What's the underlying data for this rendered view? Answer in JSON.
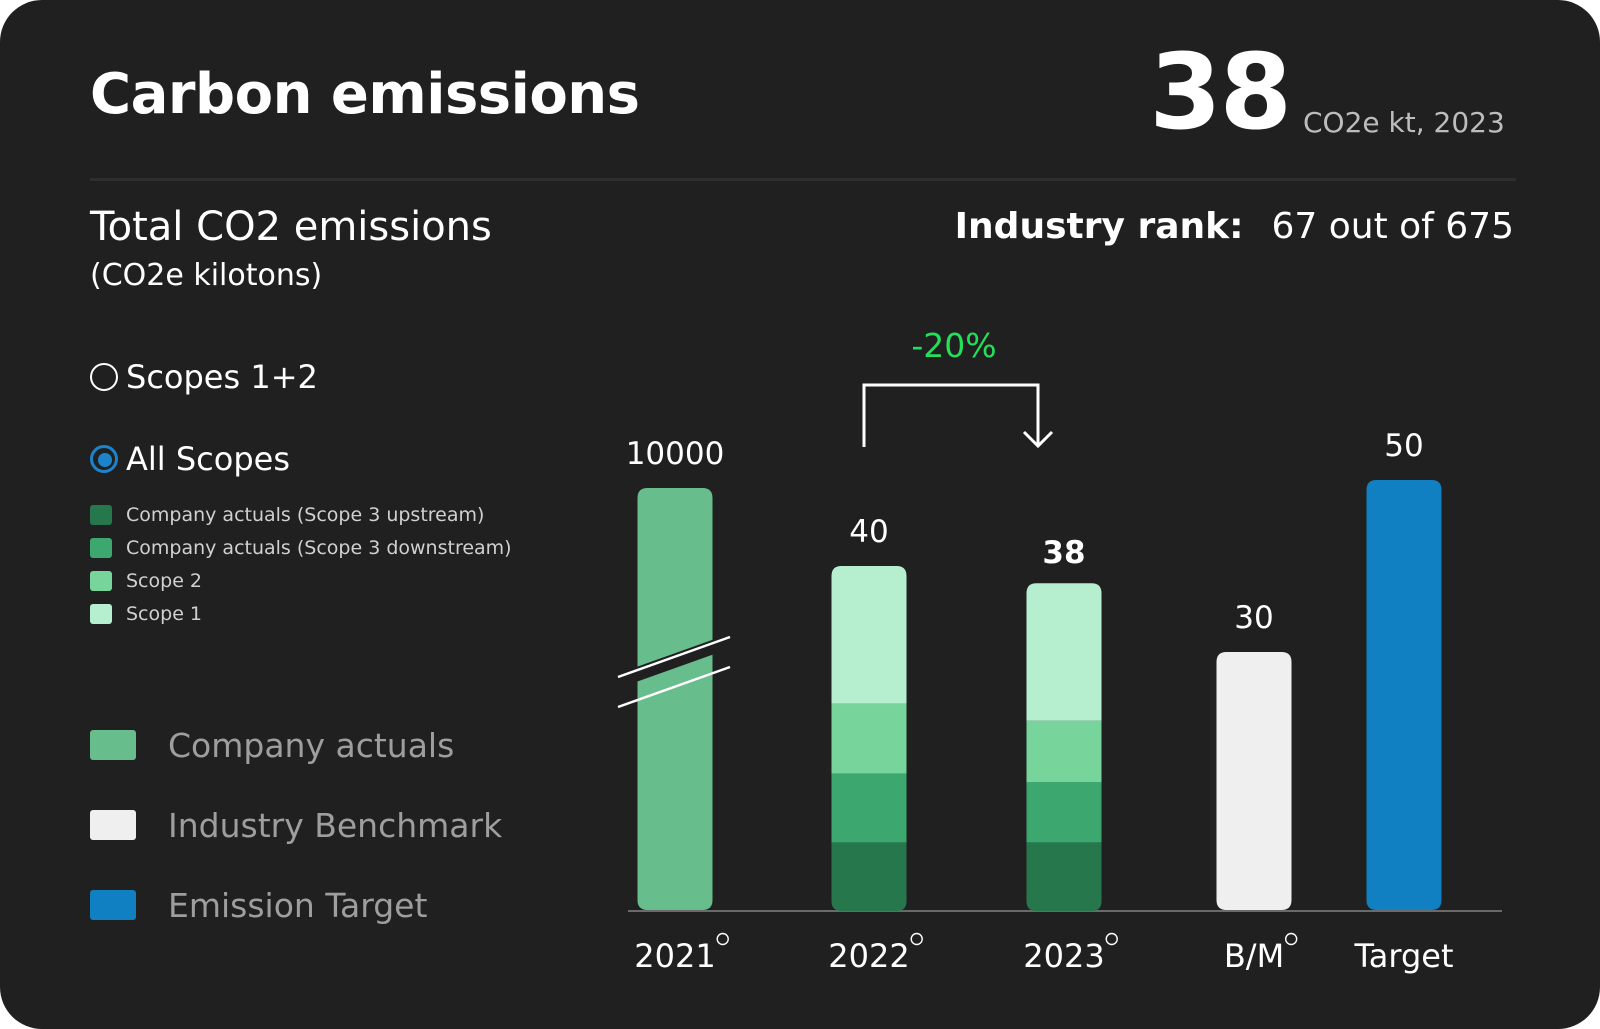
{
  "header": {
    "title": "Carbon emissions",
    "headline_value": "38",
    "headline_unit": "CO2e kt, 2023"
  },
  "section": {
    "title": "Total CO2 emissions",
    "unit": "(CO2e kilotons)",
    "rank_label": "Industry rank:",
    "rank_value": "67 out of 675"
  },
  "scope_selector": {
    "options": [
      {
        "label": "Scopes 1+2",
        "selected": false
      },
      {
        "label": "All Scopes",
        "selected": true
      }
    ]
  },
  "colors": {
    "scope3_upstream": "#27774d",
    "scope3_downstream": "#3ca86f",
    "scope2": "#77d49a",
    "scope1": "#b6efd0",
    "company_actuals": "#67bd8b",
    "benchmark": "#efefef",
    "target": "#1080c2",
    "change": "#22e05a",
    "accent": "#1c84cc"
  },
  "scope_legend": [
    {
      "label": "Company actuals (Scope 3 upstream)",
      "color": "#27774d"
    },
    {
      "label": "Company actuals (Scope 3 downstream)",
      "color": "#3ca86f"
    },
    {
      "label": "Scope 2",
      "color": "#77d49a"
    },
    {
      "label": "Scope 1",
      "color": "#b6efd0"
    }
  ],
  "main_legend": [
    {
      "label": "Company actuals",
      "color": "#67bd8b"
    },
    {
      "label": "Industry Benchmark",
      "color": "#efefef"
    },
    {
      "label": "Emission Target",
      "color": "#1080c2"
    }
  ],
  "chart_data": {
    "type": "bar",
    "stacked": true,
    "categories": [
      "2021",
      "2022",
      "2023",
      "B/M",
      "Target"
    ],
    "category_marker_icon": "registered-circle-icon",
    "value_labels": [
      "10000",
      "40",
      "38",
      "30",
      "50"
    ],
    "series": [
      {
        "name": "Company actuals (Scope 3 upstream)",
        "values": [
          null,
          8,
          8,
          null,
          null
        ]
      },
      {
        "name": "Company actuals (Scope 3 downstream)",
        "values": [
          null,
          8,
          7,
          null,
          null
        ]
      },
      {
        "name": "Scope 2",
        "values": [
          null,
          8,
          7,
          null,
          null
        ]
      },
      {
        "name": "Scope 1",
        "values": [
          null,
          16,
          16,
          null,
          null
        ]
      },
      {
        "name": "Company actuals",
        "values": [
          10000,
          null,
          null,
          null,
          null
        ]
      },
      {
        "name": "Industry Benchmark",
        "values": [
          null,
          null,
          null,
          30,
          null
        ]
      },
      {
        "name": "Emission Target",
        "values": [
          null,
          null,
          null,
          null,
          50
        ]
      }
    ],
    "axis_break": {
      "category": "2021"
    },
    "annotation": {
      "text": "-20%",
      "from": "2022",
      "to": "2023"
    },
    "ylim": [
      0,
      50
    ],
    "grid": false
  }
}
